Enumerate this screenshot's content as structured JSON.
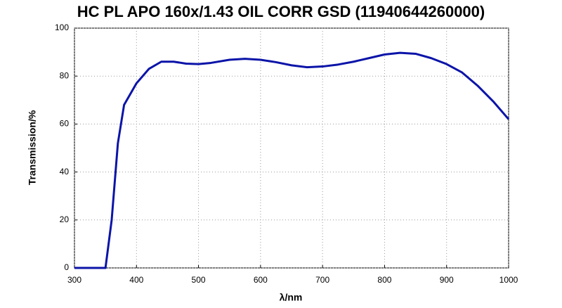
{
  "chart_data": {
    "type": "line",
    "title": "HC PL APO 160x/1.43 OIL CORR GSD (11940644260000)",
    "xlabel": "λ/nm",
    "ylabel": "Transmission/%",
    "x": [
      300,
      350,
      360,
      370,
      380,
      400,
      420,
      440,
      460,
      480,
      500,
      520,
      550,
      575,
      600,
      625,
      650,
      675,
      700,
      725,
      750,
      775,
      800,
      825,
      850,
      875,
      900,
      925,
      950,
      975,
      1000
    ],
    "series": [
      {
        "color": "#0b14a8",
        "values": [
          0,
          0,
          20,
          52,
          68,
          77,
          83,
          86,
          86,
          85.2,
          85,
          85.5,
          86.8,
          87.2,
          86.8,
          85.8,
          84.5,
          83.7,
          84,
          84.8,
          86,
          87.5,
          89,
          89.7,
          89.3,
          87.5,
          85,
          81.5,
          76,
          69.5,
          62
        ]
      }
    ],
    "xlim": [
      300,
      1000
    ],
    "ylim": [
      0,
      100
    ],
    "xticks": [
      300,
      400,
      500,
      600,
      700,
      800,
      900,
      1000
    ],
    "yticks": [
      0,
      20,
      40,
      60,
      80,
      100
    ],
    "grid": true
  }
}
